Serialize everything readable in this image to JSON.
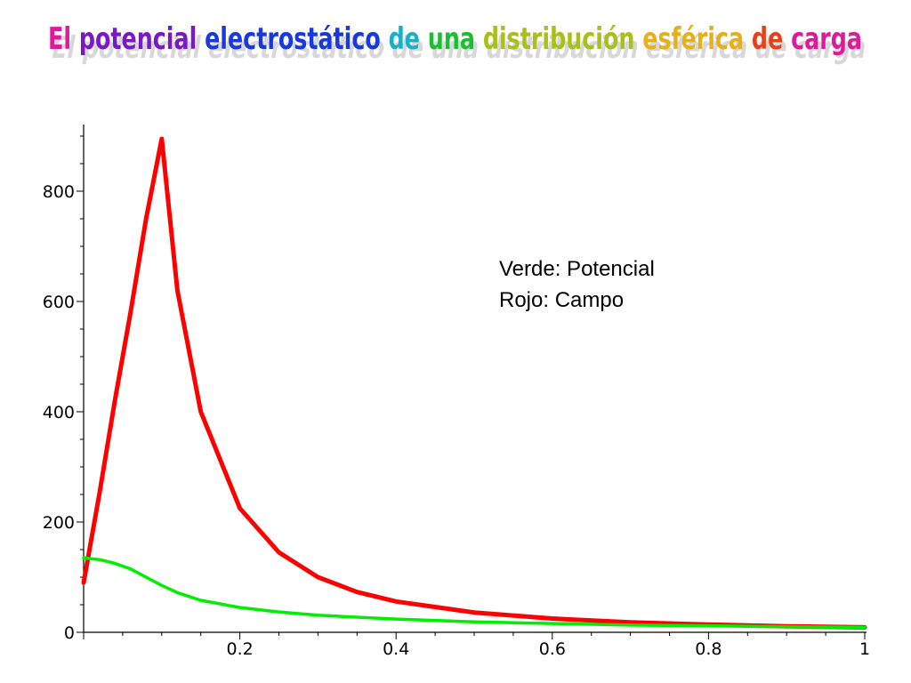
{
  "slide": {
    "title": "El potencial electrostático de una distribución esférica de carga",
    "title_colors": [
      "#e0189a",
      "#7a18c8",
      "#1838e0",
      "#18b0c8",
      "#18c030",
      "#a8c018",
      "#e8b018",
      "#e84018"
    ]
  },
  "legend": {
    "line1": "Verde: Potencial",
    "line2": "Rojo: Campo"
  },
  "chart_data": {
    "type": "line",
    "title": "",
    "xlabel": "",
    "ylabel": "",
    "xlim": [
      0,
      1
    ],
    "ylim": [
      0,
      900
    ],
    "grid": false,
    "x_ticks": [
      "0.2",
      "0.4",
      "0.6",
      "0.8",
      "1"
    ],
    "y_ticks": [
      "0",
      "200",
      "400",
      "600",
      "800"
    ],
    "series": [
      {
        "color": "#ff0000",
        "x": [
          0,
          0.02,
          0.04,
          0.06,
          0.08,
          0.1,
          0.12,
          0.15,
          0.2,
          0.25,
          0.3,
          0.35,
          0.4,
          0.5,
          0.6,
          0.7,
          0.8,
          0.9,
          1.0
        ],
        "y": [
          90,
          250,
          420,
          580,
          750,
          895,
          620,
          400,
          225,
          145,
          100,
          73,
          56,
          36,
          25,
          18,
          14,
          11,
          9
        ]
      },
      {
        "color": "#00ee00",
        "x": [
          0,
          0.02,
          0.04,
          0.06,
          0.08,
          0.1,
          0.12,
          0.15,
          0.2,
          0.25,
          0.3,
          0.4,
          0.5,
          0.6,
          0.7,
          0.8,
          0.9,
          1.0
        ],
        "y": [
          135,
          132,
          125,
          115,
          100,
          85,
          72,
          58,
          45,
          37,
          31,
          24,
          19,
          16,
          13,
          12,
          10,
          9
        ]
      }
    ]
  }
}
